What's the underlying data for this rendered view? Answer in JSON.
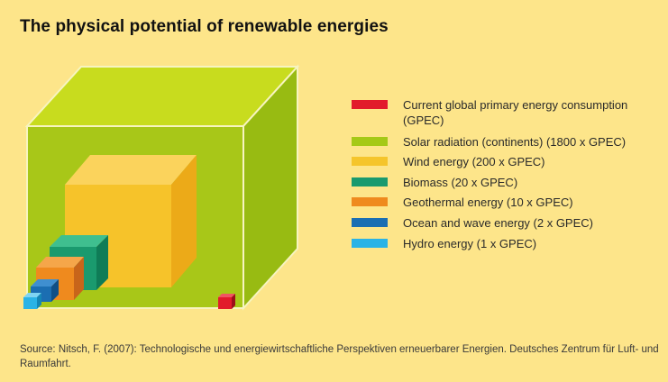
{
  "title": "The physical potential of renewable energies",
  "legend": [
    {
      "label": "Current global primary energy consumption (GPEC)",
      "color": "#e21b2b",
      "icon": "red-swatch"
    },
    {
      "label": "Solar radiation (continents)  (1800 x GPEC)",
      "color": "#a5c917",
      "icon": "light-green-swatch"
    },
    {
      "label": "Wind energy (200 x GPEC)",
      "color": "#f5c52b",
      "icon": "yellow-swatch"
    },
    {
      "label": "Biomass (20 x GPEC)",
      "color": "#1a9a6e",
      "icon": "teal-swatch"
    },
    {
      "label": "Geothermal energy (10 x GPEC)",
      "color": "#ef8a1e",
      "icon": "orange-swatch"
    },
    {
      "label": "Ocean and wave energy (2 x GPEC)",
      "color": "#1b6eb2",
      "icon": "blue-swatch"
    },
    {
      "label": "Hydro energy (1 x GPEC)",
      "color": "#2ab3e6",
      "icon": "cyan-swatch"
    }
  ],
  "source": "Source: Nitsch, F. (2007): Technologische und energiewirtschaftliche Perspektiven erneuerbarer Energien. Deutsches Zentrum für Luft- und Raumfahrt."
}
